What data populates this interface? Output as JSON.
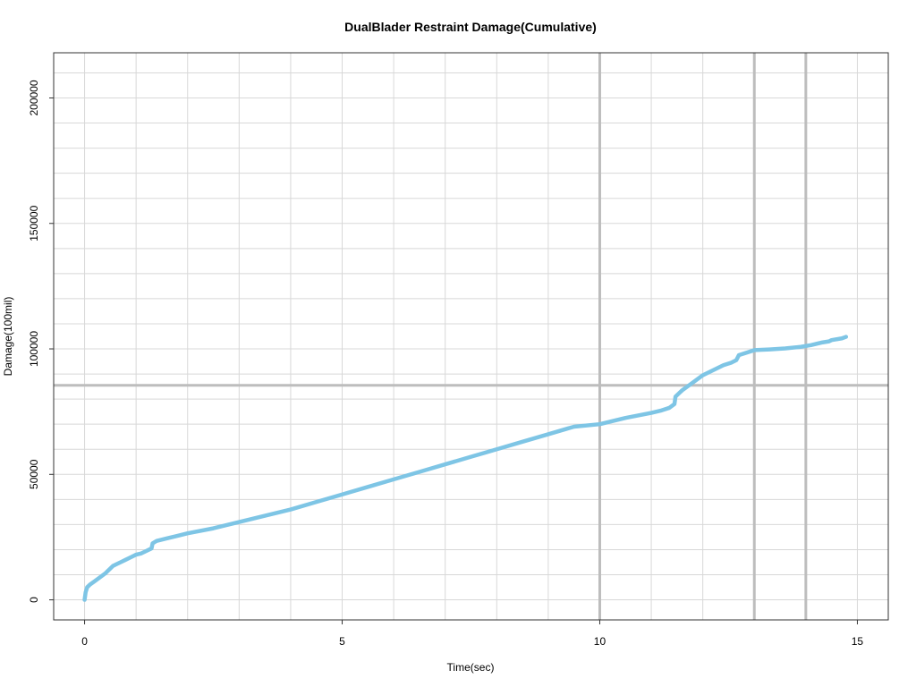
{
  "chart_data": {
    "type": "line",
    "title": "DualBlader Restraint Damage(Cumulative)",
    "xlabel": "Time(sec)",
    "ylabel": "Damage(100mil)",
    "xlim": [
      -0.6,
      15.6
    ],
    "ylim": [
      -8000,
      218000
    ],
    "x_ticks": [
      0,
      5,
      10,
      15
    ],
    "x_tick_labels": [
      "0",
      "5",
      "10",
      "15"
    ],
    "y_ticks": [
      0,
      50000,
      100000,
      150000,
      200000
    ],
    "y_tick_labels": [
      "0",
      "50000",
      "100000",
      "150000",
      "200000"
    ],
    "grid": true,
    "minor_grid_x_step": 1,
    "minor_grid_y_step": 10000,
    "reference_lines": {
      "vertical": [
        10,
        13,
        14
      ],
      "horizontal": [
        85500
      ]
    },
    "colors": {
      "line": "#7ec5e5",
      "grid": "#d8d8d8",
      "reference": "#bdbdbd",
      "frame": "#333333"
    },
    "series": [
      {
        "x": [
          0,
          0.02,
          0.05,
          0.1,
          0.2,
          0.3,
          0.4,
          0.45,
          0.5,
          0.55,
          0.6,
          0.7,
          0.8,
          0.9,
          1.0,
          1.1,
          1.2,
          1.3,
          1.32,
          1.4,
          1.6,
          1.8,
          2.0,
          2.5,
          3.0,
          3.5,
          4.0,
          4.5,
          5.0,
          5.5,
          6.0,
          6.5,
          7.0,
          7.5,
          8.0,
          8.5,
          9.0,
          9.5,
          10.0,
          10.5,
          11.0,
          11.2,
          11.35,
          11.45,
          11.47,
          11.6,
          11.8,
          12.0,
          12.2,
          12.4,
          12.55,
          12.65,
          12.7,
          12.85,
          13.0,
          13.3,
          13.6,
          13.9,
          14.1,
          14.3,
          14.45,
          14.5,
          14.7,
          14.78
        ],
        "y": [
          0,
          3000,
          5000,
          6000,
          7500,
          9000,
          10500,
          11500,
          12500,
          13500,
          14000,
          15000,
          16000,
          17000,
          18000,
          18500,
          19500,
          20500,
          22500,
          23500,
          24500,
          25500,
          26500,
          28500,
          31000,
          33500,
          36000,
          39000,
          42000,
          45000,
          48000,
          51000,
          54000,
          57000,
          60000,
          63000,
          66000,
          69000,
          70000,
          72500,
          74500,
          75500,
          76500,
          78000,
          81000,
          83500,
          86500,
          89500,
          91500,
          93500,
          94500,
          95500,
          97500,
          98500,
          99500,
          99800,
          100200,
          100800,
          101500,
          102500,
          103000,
          103500,
          104200,
          104800
        ]
      }
    ]
  }
}
